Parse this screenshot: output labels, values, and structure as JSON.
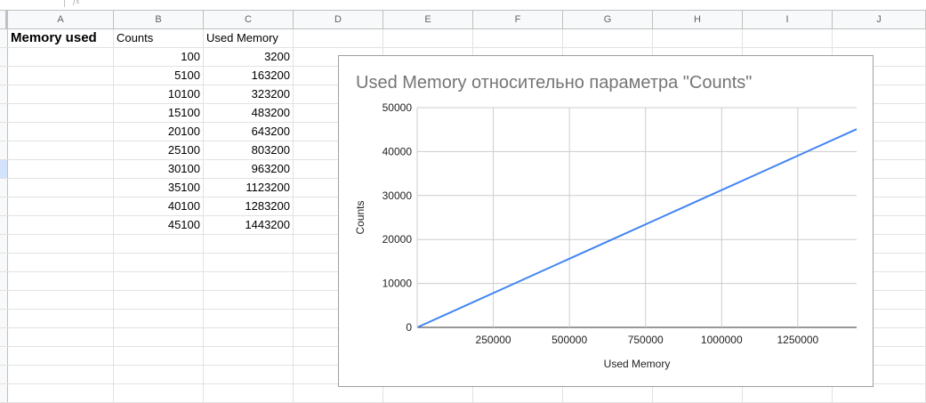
{
  "formula_bar": {
    "fx": "fx"
  },
  "columns": [
    "A",
    "B",
    "C",
    "D",
    "E",
    "F",
    "G",
    "H",
    "I",
    "J"
  ],
  "sheet": {
    "title": "Memory used",
    "headers": [
      "Counts",
      "Used Memory"
    ],
    "rows": [
      [
        "100",
        "3200"
      ],
      [
        "5100",
        "163200"
      ],
      [
        "10100",
        "323200"
      ],
      [
        "15100",
        "483200"
      ],
      [
        "20100",
        "643200"
      ],
      [
        "25100",
        "803200"
      ],
      [
        "30100",
        "963200"
      ],
      [
        "35100",
        "1123200"
      ],
      [
        "40100",
        "1283200"
      ],
      [
        "45100",
        "1443200"
      ]
    ]
  },
  "chart_data": {
    "type": "line",
    "title": "Used Memory относительно параметра \"Counts\"",
    "xlabel": "Used Memory",
    "ylabel": "Counts",
    "x": [
      3200,
      163200,
      323200,
      483200,
      643200,
      803200,
      963200,
      1123200,
      1283200,
      1443200
    ],
    "series": [
      {
        "values": [
          100,
          5100,
          10100,
          15100,
          20100,
          25100,
          30100,
          35100,
          40100,
          45100
        ],
        "color": "#4285f4"
      }
    ],
    "xlim": [
      0,
      1443200
    ],
    "ylim": [
      0,
      50000
    ],
    "xticks": [
      "250000",
      "500000",
      "750000",
      "1000000",
      "1250000"
    ],
    "xtick_values": [
      250000,
      500000,
      750000,
      1000000,
      1250000
    ],
    "yticks": [
      "0",
      "10000",
      "20000",
      "30000",
      "40000",
      "50000"
    ],
    "ytick_values": [
      0,
      10000,
      20000,
      30000,
      40000,
      50000
    ],
    "grid": true,
    "legend": "none"
  }
}
